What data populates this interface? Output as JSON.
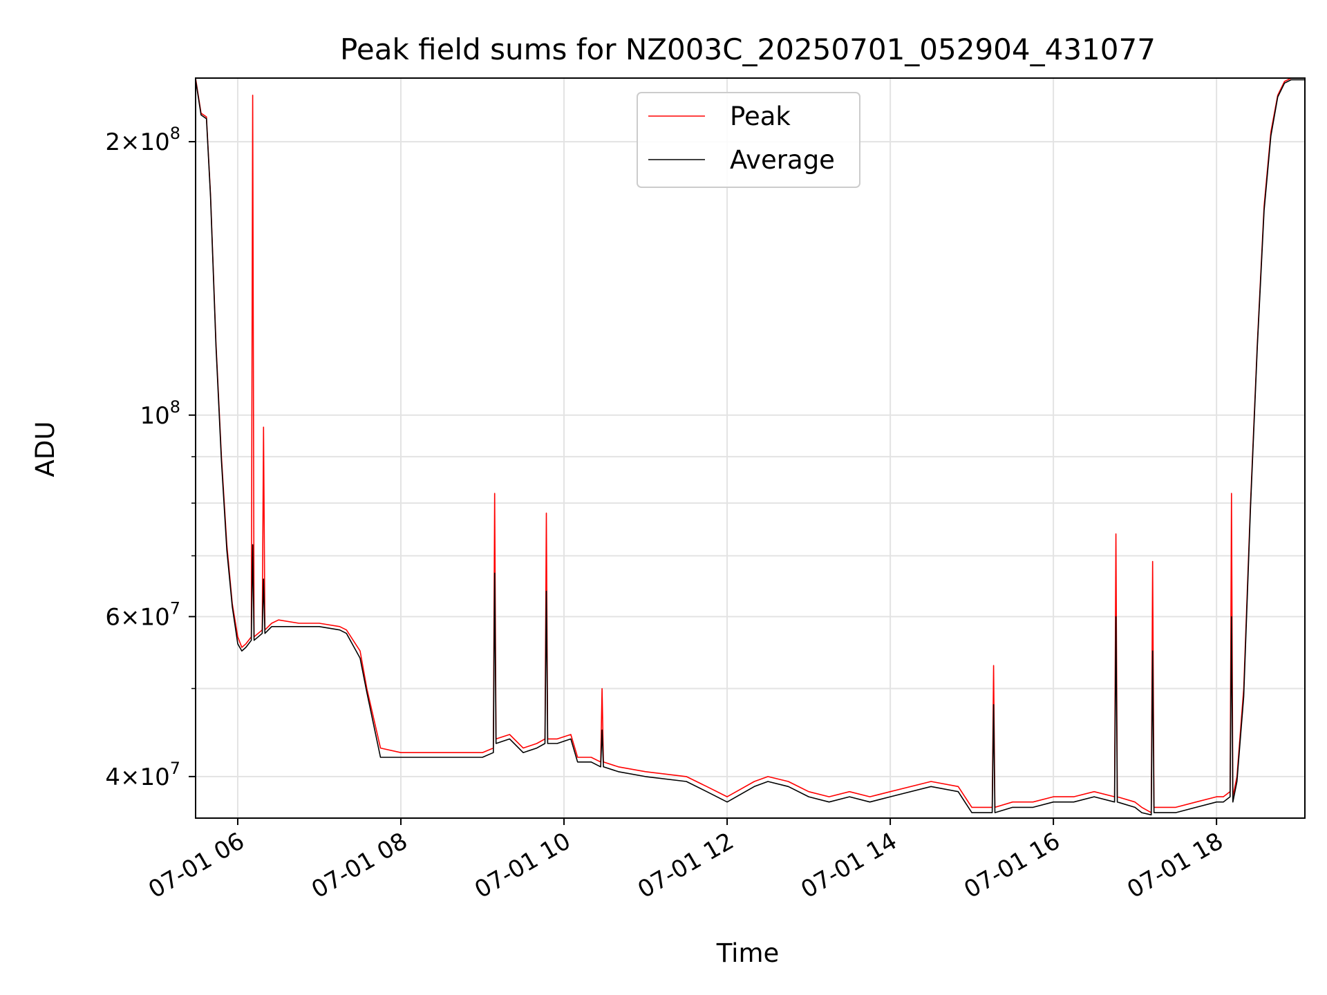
{
  "chart_data": {
    "type": "line",
    "title": "Peak field sums for NZ003C_20250701_052904_431077",
    "xlabel": "Time",
    "ylabel": "ADU",
    "yscale": "log",
    "ylim": [
      36000000,
      235000000
    ],
    "xlim": [
      "2025-07-01 05:29",
      "2025-07-01 19:05"
    ],
    "grid": true,
    "legend_placement": "top-center",
    "x_ticks": [
      {
        "x": "2025-07-01 06:00",
        "label": "07-01 06"
      },
      {
        "x": "2025-07-01 08:00",
        "label": "07-01 08"
      },
      {
        "x": "2025-07-01 10:00",
        "label": "07-01 10"
      },
      {
        "x": "2025-07-01 12:00",
        "label": "07-01 12"
      },
      {
        "x": "2025-07-01 14:00",
        "label": "07-01 14"
      },
      {
        "x": "2025-07-01 16:00",
        "label": "07-01 16"
      },
      {
        "x": "2025-07-01 18:00",
        "label": "07-01 18"
      }
    ],
    "y_ticks": [
      {
        "value": 40000000,
        "mant": "4",
        "exp": "7"
      },
      {
        "value": 60000000,
        "mant": "6",
        "exp": "7"
      },
      {
        "value": 100000000,
        "mant": "",
        "exp": "8"
      },
      {
        "value": 200000000,
        "mant": "2",
        "exp": "8"
      }
    ],
    "y_minor_ticks": [
      50000000,
      70000000,
      80000000,
      90000000
    ],
    "series": [
      {
        "name": "Peak",
        "color": "#ff0000",
        "x": [
          "2025-07-01 05:29",
          "2025-07-01 05:33",
          "2025-07-01 05:37",
          "2025-07-01 05:40",
          "2025-07-01 05:44",
          "2025-07-01 05:48",
          "2025-07-01 05:52",
          "2025-07-01 05:56",
          "2025-07-01 06:00",
          "2025-07-01 06:03",
          "2025-07-01 06:06",
          "2025-07-01 06:10",
          "2025-07-01 06:11",
          "2025-07-01 06:12",
          "2025-07-01 06:15",
          "2025-07-01 06:18",
          "2025-07-01 06:19",
          "2025-07-01 06:20",
          "2025-07-01 06:25",
          "2025-07-01 06:30",
          "2025-07-01 06:45",
          "2025-07-01 07:00",
          "2025-07-01 07:15",
          "2025-07-01 07:20",
          "2025-07-01 07:30",
          "2025-07-01 07:35",
          "2025-07-01 07:45",
          "2025-07-01 08:00",
          "2025-07-01 08:30",
          "2025-07-01 09:00",
          "2025-07-01 09:08",
          "2025-07-01 09:09",
          "2025-07-01 09:10",
          "2025-07-01 09:20",
          "2025-07-01 09:30",
          "2025-07-01 09:40",
          "2025-07-01 09:46",
          "2025-07-01 09:47",
          "2025-07-01 09:48",
          "2025-07-01 09:55",
          "2025-07-01 10:05",
          "2025-07-01 10:10",
          "2025-07-01 10:20",
          "2025-07-01 10:27",
          "2025-07-01 10:28",
          "2025-07-01 10:29",
          "2025-07-01 10:40",
          "2025-07-01 11:00",
          "2025-07-01 11:30",
          "2025-07-01 11:45",
          "2025-07-01 12:00",
          "2025-07-01 12:20",
          "2025-07-01 12:30",
          "2025-07-01 12:45",
          "2025-07-01 13:00",
          "2025-07-01 13:15",
          "2025-07-01 13:30",
          "2025-07-01 13:45",
          "2025-07-01 14:00",
          "2025-07-01 14:30",
          "2025-07-01 14:50",
          "2025-07-01 15:00",
          "2025-07-01 15:15",
          "2025-07-01 15:16",
          "2025-07-01 15:17",
          "2025-07-01 15:30",
          "2025-07-01 15:45",
          "2025-07-01 16:00",
          "2025-07-01 16:15",
          "2025-07-01 16:30",
          "2025-07-01 16:45",
          "2025-07-01 16:46",
          "2025-07-01 16:47",
          "2025-07-01 17:00",
          "2025-07-01 17:05",
          "2025-07-01 17:12",
          "2025-07-01 17:13",
          "2025-07-01 17:14",
          "2025-07-01 17:20",
          "2025-07-01 17:30",
          "2025-07-01 17:45",
          "2025-07-01 18:00",
          "2025-07-01 18:05",
          "2025-07-01 18:10",
          "2025-07-01 18:11",
          "2025-07-01 18:12",
          "2025-07-01 18:15",
          "2025-07-01 18:20",
          "2025-07-01 18:25",
          "2025-07-01 18:30",
          "2025-07-01 18:35",
          "2025-07-01 18:40",
          "2025-07-01 18:45",
          "2025-07-01 18:50",
          "2025-07-01 18:55",
          "2025-07-01 19:00",
          "2025-07-01 19:05"
        ],
        "y": [
          235000000,
          215000000,
          213000000,
          175000000,
          120000000,
          90000000,
          72000000,
          62000000,
          57000000,
          55500000,
          56000000,
          57000000,
          225000000,
          57000000,
          57500000,
          58000000,
          97000000,
          58000000,
          59000000,
          59500000,
          59000000,
          59000000,
          58500000,
          58000000,
          55000000,
          50000000,
          43000000,
          42500000,
          42500000,
          42500000,
          43000000,
          82000000,
          44000000,
          44500000,
          43000000,
          43500000,
          44000000,
          78000000,
          44000000,
          44000000,
          44500000,
          42000000,
          42000000,
          41500000,
          50000000,
          41500000,
          41000000,
          40500000,
          40000000,
          39000000,
          38000000,
          39500000,
          40000000,
          39500000,
          38500000,
          38000000,
          38500000,
          38000000,
          38500000,
          39500000,
          39000000,
          37000000,
          37000000,
          53000000,
          37000000,
          37500000,
          37500000,
          38000000,
          38000000,
          38500000,
          38000000,
          74000000,
          38000000,
          37500000,
          37000000,
          36500000,
          69000000,
          37000000,
          37000000,
          37000000,
          37500000,
          38000000,
          38000000,
          38500000,
          82000000,
          38000000,
          40000000,
          50000000,
          80000000,
          120000000,
          170000000,
          205000000,
          225000000,
          233000000,
          235000000,
          235000000,
          235000000
        ]
      },
      {
        "name": "Average",
        "color": "#000000",
        "x": [
          "2025-07-01 05:29",
          "2025-07-01 05:33",
          "2025-07-01 05:37",
          "2025-07-01 05:40",
          "2025-07-01 05:44",
          "2025-07-01 05:48",
          "2025-07-01 05:52",
          "2025-07-01 05:56",
          "2025-07-01 06:00",
          "2025-07-01 06:03",
          "2025-07-01 06:06",
          "2025-07-01 06:10",
          "2025-07-01 06:11",
          "2025-07-01 06:12",
          "2025-07-01 06:15",
          "2025-07-01 06:18",
          "2025-07-01 06:19",
          "2025-07-01 06:20",
          "2025-07-01 06:25",
          "2025-07-01 06:30",
          "2025-07-01 06:45",
          "2025-07-01 07:00",
          "2025-07-01 07:15",
          "2025-07-01 07:20",
          "2025-07-01 07:30",
          "2025-07-01 07:35",
          "2025-07-01 07:45",
          "2025-07-01 08:00",
          "2025-07-01 08:30",
          "2025-07-01 09:00",
          "2025-07-01 09:08",
          "2025-07-01 09:09",
          "2025-07-01 09:10",
          "2025-07-01 09:20",
          "2025-07-01 09:30",
          "2025-07-01 09:40",
          "2025-07-01 09:46",
          "2025-07-01 09:47",
          "2025-07-01 09:48",
          "2025-07-01 09:55",
          "2025-07-01 10:05",
          "2025-07-01 10:10",
          "2025-07-01 10:20",
          "2025-07-01 10:27",
          "2025-07-01 10:28",
          "2025-07-01 10:29",
          "2025-07-01 10:40",
          "2025-07-01 11:00",
          "2025-07-01 11:30",
          "2025-07-01 11:45",
          "2025-07-01 12:00",
          "2025-07-01 12:20",
          "2025-07-01 12:30",
          "2025-07-01 12:45",
          "2025-07-01 13:00",
          "2025-07-01 13:15",
          "2025-07-01 13:30",
          "2025-07-01 13:45",
          "2025-07-01 14:00",
          "2025-07-01 14:30",
          "2025-07-01 14:50",
          "2025-07-01 15:00",
          "2025-07-01 15:15",
          "2025-07-01 15:16",
          "2025-07-01 15:17",
          "2025-07-01 15:30",
          "2025-07-01 15:45",
          "2025-07-01 16:00",
          "2025-07-01 16:15",
          "2025-07-01 16:30",
          "2025-07-01 16:45",
          "2025-07-01 16:46",
          "2025-07-01 16:47",
          "2025-07-01 17:00",
          "2025-07-01 17:05",
          "2025-07-01 17:12",
          "2025-07-01 17:13",
          "2025-07-01 17:14",
          "2025-07-01 17:20",
          "2025-07-01 17:30",
          "2025-07-01 17:45",
          "2025-07-01 18:00",
          "2025-07-01 18:05",
          "2025-07-01 18:10",
          "2025-07-01 18:11",
          "2025-07-01 18:12",
          "2025-07-01 18:15",
          "2025-07-01 18:20",
          "2025-07-01 18:25",
          "2025-07-01 18:30",
          "2025-07-01 18:35",
          "2025-07-01 18:40",
          "2025-07-01 18:45",
          "2025-07-01 18:50",
          "2025-07-01 18:55",
          "2025-07-01 19:00",
          "2025-07-01 19:05"
        ],
        "y": [
          234000000,
          214000000,
          212000000,
          174000000,
          119000000,
          89000000,
          71000000,
          61500000,
          56000000,
          55000000,
          55500000,
          56500000,
          72000000,
          56500000,
          57000000,
          57500000,
          66000000,
          57500000,
          58500000,
          58500000,
          58500000,
          58500000,
          58000000,
          57500000,
          54000000,
          49500000,
          42000000,
          42000000,
          42000000,
          42000000,
          42500000,
          67000000,
          43500000,
          44000000,
          42500000,
          43000000,
          43500000,
          64000000,
          43500000,
          43500000,
          44000000,
          41500000,
          41500000,
          41000000,
          45000000,
          41000000,
          40500000,
          40000000,
          39500000,
          38500000,
          37500000,
          39000000,
          39500000,
          39000000,
          38000000,
          37500000,
          38000000,
          37500000,
          38000000,
          39000000,
          38500000,
          36500000,
          36500000,
          48000000,
          36500000,
          37000000,
          37000000,
          37500000,
          37500000,
          38000000,
          37500000,
          60000000,
          37500000,
          37000000,
          36500000,
          36300000,
          55000000,
          36500000,
          36500000,
          36500000,
          37000000,
          37500000,
          37500000,
          38000000,
          60000000,
          37500000,
          39500000,
          49000000,
          79000000,
          119000000,
          168000000,
          203000000,
          224000000,
          232000000,
          234000000,
          234000000,
          234000000
        ]
      }
    ]
  }
}
